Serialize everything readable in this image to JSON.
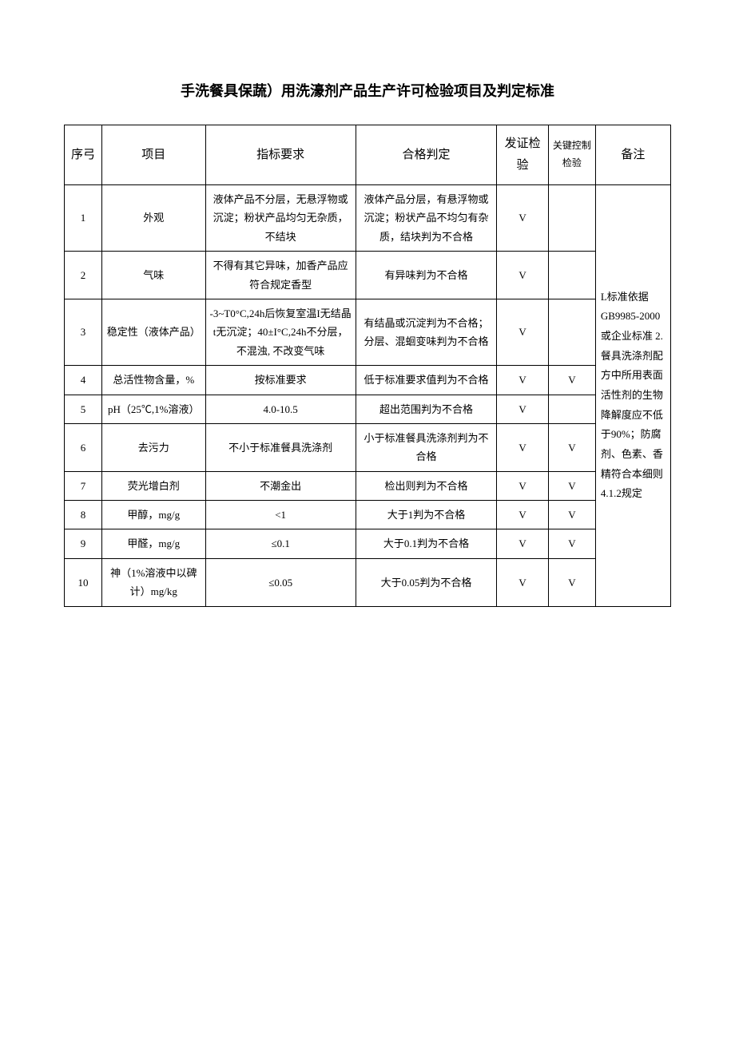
{
  "title": "手洗餐具保蔬）用洗濠剂产品生产许可检验项目及判定标准",
  "headers": {
    "seq": "序弓",
    "item": "项目",
    "req": "指标要求",
    "judge": "合格判定",
    "cert": "发证检验",
    "key": "关键控制检验",
    "note": "备注"
  },
  "rows": [
    {
      "seq": "1",
      "item": "外观",
      "req": "液体产品不分层，无悬浮物或沉淀；粉状产品均匀无杂质，不结块",
      "judge": "液体产品分层，有悬浮物或沉淀；粉状产品不均匀有杂质，结块判为不合格",
      "cert": "V",
      "key": ""
    },
    {
      "seq": "2",
      "item": "气味",
      "req": "不得有其它异味，加香产品应符合规定香型",
      "judge": "有异味判为不合格",
      "cert": "V",
      "key": ""
    },
    {
      "seq": "3",
      "item": "稳定性（液体产品）",
      "req": "-3~T0°C,24h后恢复室温I无结晶t无沉淀；40±I°C,24h不分层，不混浊, 不改变气味",
      "judge": "有结晶或沉淀判为不合格；分层、混蛔变味判为不合格",
      "cert": "V",
      "key": ""
    },
    {
      "seq": "4",
      "item": "总活性物含量，%",
      "req": "按标准要求",
      "judge": "低于标准要求值判为不合格",
      "cert": "V",
      "key": "V"
    },
    {
      "seq": "5",
      "item": "pH（25℃,1%溶液）",
      "req": "4.0-10.5",
      "judge": "超出范围判为不合格",
      "cert": "V",
      "key": ""
    },
    {
      "seq": "6",
      "item": "去污力",
      "req": "不小于标准餐具洗涤剂",
      "judge": "小于标准餐具洗涤剂判为不合格",
      "cert": "V",
      "key": "V"
    },
    {
      "seq": "7",
      "item": "荧光增白剂",
      "req": "不潮金出",
      "judge": "检出则判为不合格",
      "cert": "V",
      "key": "V"
    },
    {
      "seq": "8",
      "item": "甲醇，mg/g",
      "req": "<1",
      "judge": "大于1判为不合格",
      "cert": "V",
      "key": "V"
    },
    {
      "seq": "9",
      "item": "甲醛，mg/g",
      "req": "≤0.1",
      "judge": "大于0.1判为不合格",
      "cert": "V",
      "key": "V"
    },
    {
      "seq": "10",
      "item": "神（1%溶液中以碑计）mg/kg",
      "req": "≤0.05",
      "judge": "大于0.05判为不合格",
      "cert": "V",
      "key": "V"
    }
  ],
  "note_text": "L标准依据GB9985-2000或企业标准 2.餐具洗涤剂配方中所用表面活性剂的生物降解度应不低于90%；防腐剂、色素、香精符合本细则4.1.2规定"
}
